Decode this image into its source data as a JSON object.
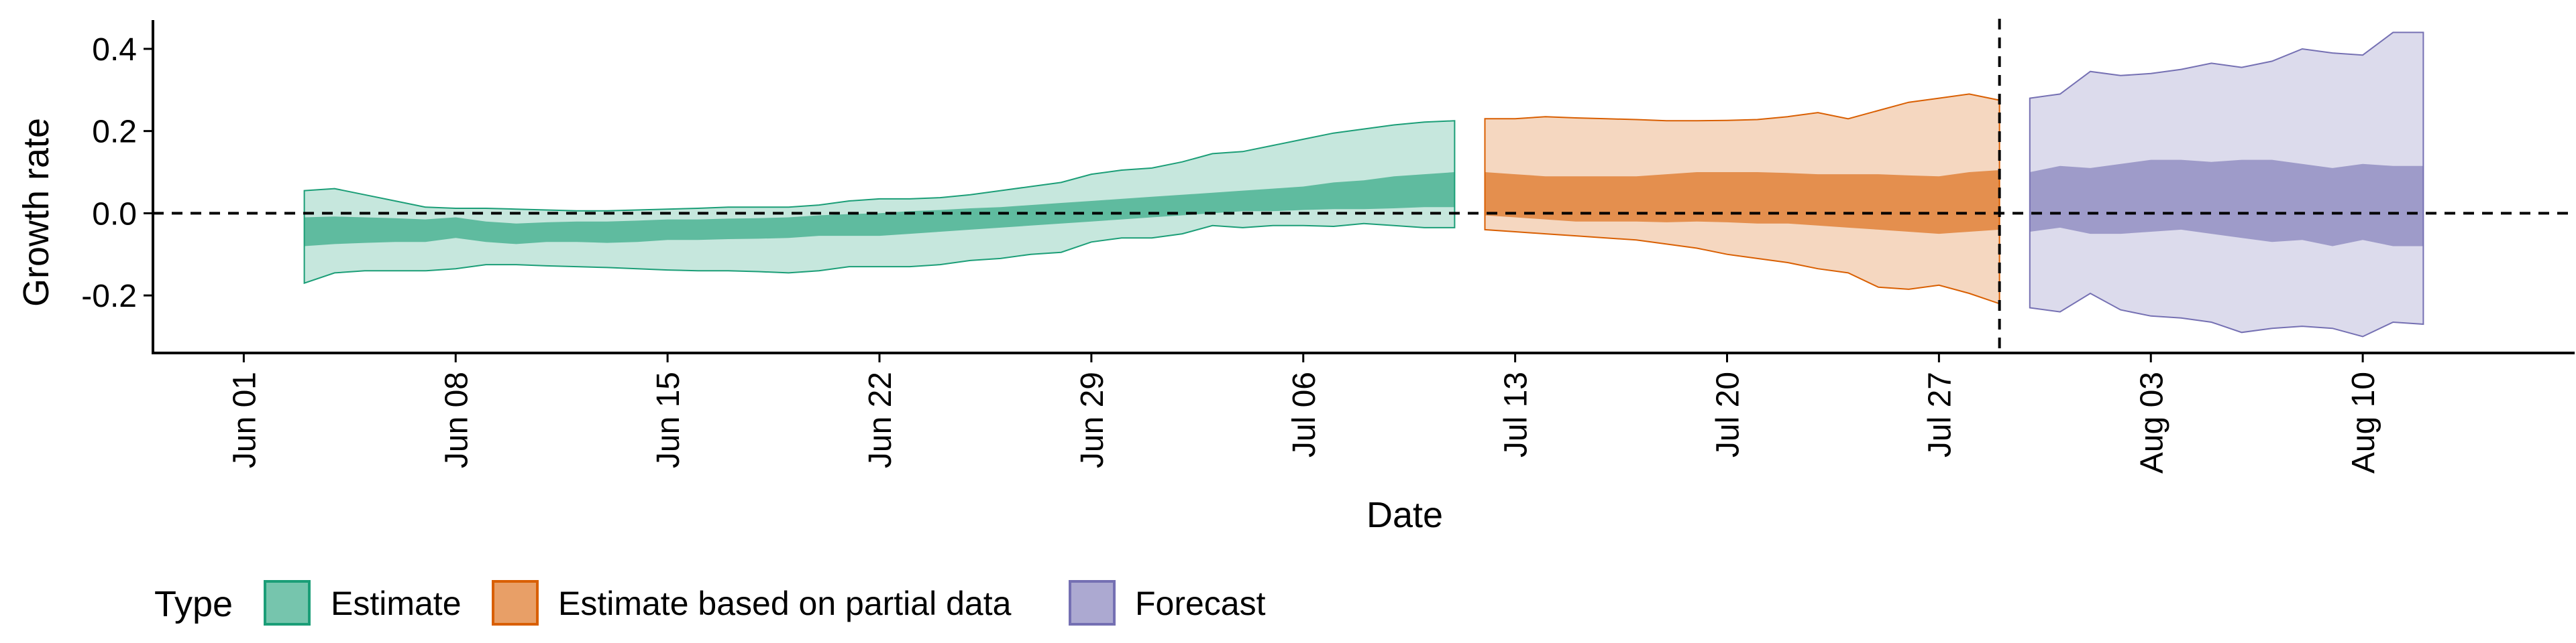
{
  "chart_data": {
    "type": "area",
    "xlabel": "Date",
    "ylabel": "Growth rate",
    "ylim": [
      -0.34,
      0.47
    ],
    "y_ticks": [
      "0.4",
      "0.2",
      "0.0",
      "-0.2"
    ],
    "x_ticks": [
      "Jun 01",
      "Jun 08",
      "Jun 15",
      "Jun 22",
      "Jun 29",
      "Jul 06",
      "Jul 13",
      "Jul 20",
      "Jul 27",
      "Aug 03",
      "Aug 10"
    ],
    "x_tick_dates": [
      "2020-06-01",
      "2020-06-08",
      "2020-06-15",
      "2020-06-22",
      "2020-06-29",
      "2020-07-06",
      "2020-07-13",
      "2020-07-20",
      "2020-07-27",
      "2020-08-03",
      "2020-08-10"
    ],
    "xlim": [
      "2020-05-29",
      "2020-08-17"
    ],
    "hline_y": 0,
    "vline_date": "2020-07-29",
    "legend": {
      "title": "Type",
      "position": "bottom"
    },
    "series": [
      {
        "name": "Estimate",
        "color": "#1b9e77",
        "dates": [
          "2020-06-03",
          "2020-06-04",
          "2020-06-05",
          "2020-06-06",
          "2020-06-07",
          "2020-06-08",
          "2020-06-09",
          "2020-06-10",
          "2020-06-11",
          "2020-06-12",
          "2020-06-13",
          "2020-06-14",
          "2020-06-15",
          "2020-06-16",
          "2020-06-17",
          "2020-06-18",
          "2020-06-19",
          "2020-06-20",
          "2020-06-21",
          "2020-06-22",
          "2020-06-23",
          "2020-06-24",
          "2020-06-25",
          "2020-06-26",
          "2020-06-27",
          "2020-06-28",
          "2020-06-29",
          "2020-06-30",
          "2020-07-01",
          "2020-07-02",
          "2020-07-03",
          "2020-07-04",
          "2020-07-05",
          "2020-07-06",
          "2020-07-07",
          "2020-07-08",
          "2020-07-09",
          "2020-07-10",
          "2020-07-11"
        ],
        "lower_90": [
          -0.17,
          -0.145,
          -0.14,
          -0.14,
          -0.14,
          -0.135,
          -0.125,
          -0.125,
          -0.128,
          -0.13,
          -0.132,
          -0.135,
          -0.138,
          -0.14,
          -0.14,
          -0.142,
          -0.145,
          -0.14,
          -0.13,
          -0.13,
          -0.13,
          -0.125,
          -0.115,
          -0.11,
          -0.1,
          -0.095,
          -0.07,
          -0.06,
          -0.06,
          -0.05,
          -0.03,
          -0.035,
          -0.03,
          -0.03,
          -0.032,
          -0.025,
          -0.03,
          -0.035,
          -0.035
        ],
        "upper_90": [
          0.055,
          0.06,
          0.045,
          0.03,
          0.015,
          0.012,
          0.012,
          0.01,
          0.008,
          0.006,
          0.006,
          0.008,
          0.01,
          0.012,
          0.015,
          0.015,
          0.015,
          0.02,
          0.03,
          0.035,
          0.035,
          0.038,
          0.045,
          0.055,
          0.065,
          0.075,
          0.095,
          0.105,
          0.11,
          0.125,
          0.145,
          0.15,
          0.165,
          0.18,
          0.195,
          0.205,
          0.215,
          0.222,
          0.225
        ],
        "lower_50": [
          -0.08,
          -0.075,
          -0.072,
          -0.07,
          -0.07,
          -0.06,
          -0.07,
          -0.075,
          -0.07,
          -0.07,
          -0.072,
          -0.07,
          -0.065,
          -0.065,
          -0.063,
          -0.062,
          -0.06,
          -0.055,
          -0.055,
          -0.055,
          -0.05,
          -0.045,
          -0.04,
          -0.035,
          -0.03,
          -0.025,
          -0.02,
          -0.015,
          -0.01,
          -0.005,
          0.0,
          0.005,
          0.005,
          0.008,
          0.01,
          0.01,
          0.012,
          0.015,
          0.015
        ],
        "upper_50": [
          -0.01,
          -0.008,
          -0.01,
          -0.012,
          -0.015,
          -0.01,
          -0.02,
          -0.025,
          -0.022,
          -0.02,
          -0.02,
          -0.018,
          -0.015,
          -0.015,
          -0.013,
          -0.012,
          -0.01,
          -0.005,
          -0.002,
          0.0,
          0.005,
          0.008,
          0.012,
          0.015,
          0.02,
          0.025,
          0.03,
          0.035,
          0.04,
          0.045,
          0.05,
          0.055,
          0.06,
          0.065,
          0.075,
          0.08,
          0.09,
          0.095,
          0.1
        ]
      },
      {
        "name": "Estimate based on partial data",
        "color": "#d95f02",
        "dates": [
          "2020-07-12",
          "2020-07-13",
          "2020-07-14",
          "2020-07-15",
          "2020-07-16",
          "2020-07-17",
          "2020-07-18",
          "2020-07-19",
          "2020-07-20",
          "2020-07-21",
          "2020-07-22",
          "2020-07-23",
          "2020-07-24",
          "2020-07-25",
          "2020-07-26",
          "2020-07-27",
          "2020-07-28",
          "2020-07-29"
        ],
        "lower_90": [
          -0.04,
          -0.045,
          -0.05,
          -0.055,
          -0.06,
          -0.065,
          -0.075,
          -0.085,
          -0.1,
          -0.11,
          -0.12,
          -0.135,
          -0.145,
          -0.18,
          -0.185,
          -0.175,
          -0.195,
          -0.22
        ],
        "upper_90": [
          0.23,
          0.23,
          0.235,
          0.232,
          0.23,
          0.228,
          0.225,
          0.225,
          0.226,
          0.228,
          0.235,
          0.245,
          0.23,
          0.25,
          0.27,
          0.28,
          0.29,
          0.275
        ],
        "lower_50": [
          -0.005,
          -0.01,
          -0.015,
          -0.02,
          -0.02,
          -0.02,
          -0.022,
          -0.02,
          -0.022,
          -0.025,
          -0.025,
          -0.03,
          -0.035,
          -0.04,
          -0.045,
          -0.05,
          -0.045,
          -0.04
        ],
        "upper_50": [
          0.1,
          0.095,
          0.09,
          0.09,
          0.09,
          0.09,
          0.095,
          0.1,
          0.1,
          0.1,
          0.098,
          0.095,
          0.095,
          0.095,
          0.092,
          0.09,
          0.1,
          0.105
        ]
      },
      {
        "name": "Forecast",
        "color": "#7570b3",
        "dates": [
          "2020-07-30",
          "2020-07-31",
          "2020-08-01",
          "2020-08-02",
          "2020-08-03",
          "2020-08-04",
          "2020-08-05",
          "2020-08-06",
          "2020-08-07",
          "2020-08-08",
          "2020-08-09",
          "2020-08-10",
          "2020-08-11",
          "2020-08-12"
        ],
        "lower_90": [
          -0.23,
          -0.24,
          -0.195,
          -0.235,
          -0.25,
          -0.255,
          -0.265,
          -0.29,
          -0.28,
          -0.275,
          -0.28,
          -0.3,
          -0.265,
          -0.27
        ],
        "upper_90": [
          0.28,
          0.29,
          0.345,
          0.335,
          0.34,
          0.35,
          0.365,
          0.355,
          0.37,
          0.4,
          0.39,
          0.385,
          0.44,
          0.44
        ],
        "lower_50": [
          -0.045,
          -0.035,
          -0.05,
          -0.05,
          -0.045,
          -0.04,
          -0.05,
          -0.06,
          -0.07,
          -0.065,
          -0.08,
          -0.065,
          -0.08,
          -0.08
        ],
        "upper_50": [
          0.1,
          0.115,
          0.11,
          0.12,
          0.13,
          0.13,
          0.125,
          0.13,
          0.13,
          0.12,
          0.11,
          0.12,
          0.115,
          0.115
        ]
      }
    ]
  }
}
